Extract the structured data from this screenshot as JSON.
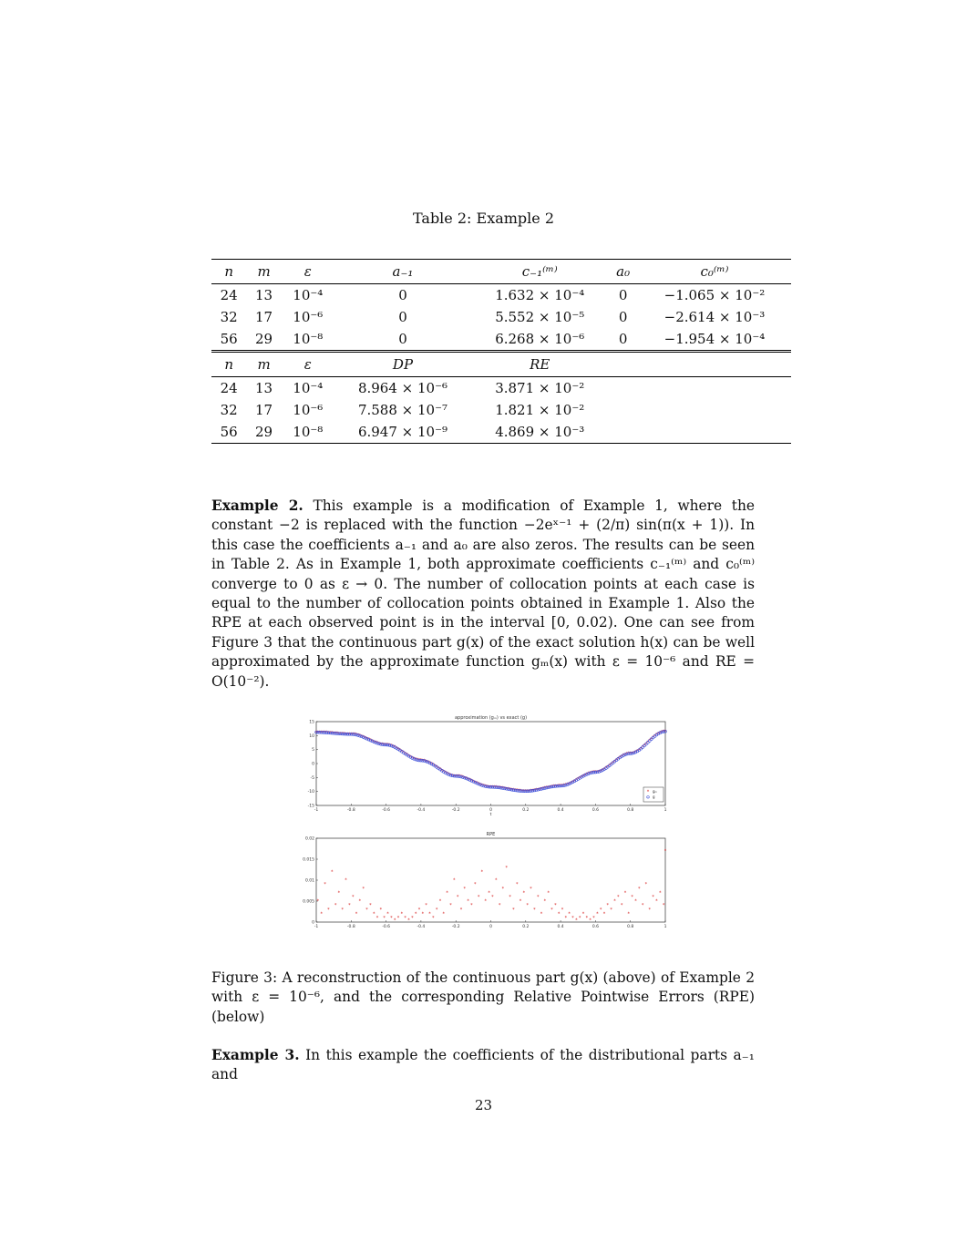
{
  "table": {
    "caption": "Table 2: Example 2",
    "header1": [
      "n",
      "m",
      "ε",
      "a₋₁",
      "c₋₁⁽ᵐ⁾",
      "a₀",
      "c₀⁽ᵐ⁾"
    ],
    "rows1": [
      [
        "24",
        "13",
        "10⁻⁴",
        "0",
        "1.632 × 10⁻⁴",
        "0",
        "−1.065 × 10⁻²"
      ],
      [
        "32",
        "17",
        "10⁻⁶",
        "0",
        "5.552 × 10⁻⁵",
        "0",
        "−2.614 × 10⁻³"
      ],
      [
        "56",
        "29",
        "10⁻⁸",
        "0",
        "6.268 × 10⁻⁶",
        "0",
        "−1.954 × 10⁻⁴"
      ]
    ],
    "header2": [
      "n",
      "m",
      "ε",
      "DP",
      "RE"
    ],
    "rows2": [
      [
        "24",
        "13",
        "10⁻⁴",
        "8.964 × 10⁻⁶",
        "3.871 × 10⁻²"
      ],
      [
        "32",
        "17",
        "10⁻⁶",
        "7.588 × 10⁻⁷",
        "1.821 × 10⁻²"
      ],
      [
        "56",
        "29",
        "10⁻⁸",
        "6.947 × 10⁻⁹",
        "4.869 × 10⁻³"
      ]
    ]
  },
  "example2": {
    "heading": "Example 2.",
    "text": "This example is a modification of Example 1, where the constant −2 is replaced with the function −2eˣ⁻¹ + (2/π) sin(π(x + 1)). In this case the coefficients a₋₁ and a₀ are also zeros. The results can be seen in Table 2. As in Example 1, both approximate coefficients c₋₁⁽ᵐ⁾ and c₀⁽ᵐ⁾ converge to 0 as ε → 0. The number of collocation points at each case is equal to the number of collocation points obtained in Example 1. Also the RPE at each observed point is in the interval [0, 0.02). One can see from Figure 3 that the continuous part g(x) of the exact solution h(x) can be well approximated by the approximate function gₘ(x) with ε = 10⁻⁶ and RE = O(10⁻²)."
  },
  "figure": {
    "caption": "Figure 3: A reconstruction of the continuous part g(x) (above) of Example 2 with ε = 10⁻⁶, and the corresponding Relative Pointwise Errors (RPE) (below)"
  },
  "example3": {
    "heading": "Example 3.",
    "text": "In this example the coefficients of the distributional parts a₋₁ and"
  },
  "page_number": "23",
  "chart_data": [
    {
      "type": "scatter",
      "title": "approximation (gₘ) vs exact (g)",
      "xlabel": "t",
      "ylabel": "",
      "xlim": [
        -1,
        1
      ],
      "ylim": [
        -15,
        15
      ],
      "xticks": [
        "-1",
        "-0.8",
        "-0.6",
        "-0.4",
        "-0.2",
        "0",
        "0.2",
        "0.4",
        "0.6",
        "0.8",
        "1"
      ],
      "yticks": [
        "15",
        "10",
        "5",
        "0",
        "-5",
        "-10",
        "-15"
      ],
      "legend": {
        "position": "bottom-right",
        "entries": [
          "gₘ",
          "g"
        ]
      },
      "series": [
        {
          "name": "gₘ",
          "marker": "*",
          "color": "#d62020",
          "x": [
            -1,
            -0.8,
            -0.6,
            -0.4,
            -0.2,
            0,
            0.2,
            0.4,
            0.6,
            0.8,
            1
          ],
          "y": [
            11.2,
            10.5,
            6.7,
            1.1,
            -4.5,
            -8.4,
            -9.9,
            -8.0,
            -3.1,
            3.6,
            11.5
          ]
        },
        {
          "name": "g",
          "marker": "o",
          "color": "#3a4bd8",
          "x": [
            -1,
            -0.8,
            -0.6,
            -0.4,
            -0.2,
            0,
            0.2,
            0.4,
            0.6,
            0.8,
            1
          ],
          "y": [
            11.2,
            10.5,
            6.7,
            1.1,
            -4.5,
            -8.4,
            -9.9,
            -8.0,
            -3.1,
            3.6,
            11.5
          ]
        }
      ]
    },
    {
      "type": "scatter",
      "title": "RPE",
      "xlabel": "t",
      "ylabel": "",
      "xlim": [
        -1,
        1
      ],
      "ylim": [
        0,
        0.02
      ],
      "xticks": [
        "-1",
        "-0.8",
        "-0.6",
        "-0.4",
        "-0.2",
        "0",
        "0.2",
        "0.4",
        "0.6",
        "0.8",
        "1"
      ],
      "yticks": [
        "0.02",
        "0.015",
        "0.01",
        "0.005",
        "0"
      ],
      "series": [
        {
          "name": "",
          "marker": "*",
          "color": "#d62020",
          "x": [
            -0.99,
            -0.97,
            -0.95,
            -0.93,
            -0.91,
            -0.89,
            -0.87,
            -0.85,
            -0.83,
            -0.81,
            -0.79,
            -0.77,
            -0.75,
            -0.73,
            -0.71,
            -0.69,
            -0.67,
            -0.65,
            -0.63,
            -0.61,
            -0.59,
            -0.57,
            -0.55,
            -0.53,
            -0.51,
            -0.49,
            -0.47,
            -0.45,
            -0.43,
            -0.41,
            -0.39,
            -0.37,
            -0.35,
            -0.33,
            -0.31,
            -0.29,
            -0.27,
            -0.25,
            -0.23,
            -0.21,
            -0.19,
            -0.17,
            -0.15,
            -0.13,
            -0.11,
            -0.09,
            -0.07,
            -0.05,
            -0.03,
            -0.01,
            0.01,
            0.03,
            0.05,
            0.07,
            0.09,
            0.11,
            0.13,
            0.15,
            0.17,
            0.19,
            0.21,
            0.23,
            0.25,
            0.27,
            0.29,
            0.31,
            0.33,
            0.35,
            0.37,
            0.39,
            0.41,
            0.43,
            0.45,
            0.47,
            0.49,
            0.51,
            0.53,
            0.55,
            0.57,
            0.59,
            0.61,
            0.63,
            0.65,
            0.67,
            0.69,
            0.71,
            0.73,
            0.75,
            0.77,
            0.79,
            0.81,
            0.83,
            0.85,
            0.87,
            0.89,
            0.91,
            0.93,
            0.95,
            0.97,
            0.99,
            1.0
          ],
          "y": [
            0.005,
            0.002,
            0.009,
            0.003,
            0.012,
            0.004,
            0.007,
            0.003,
            0.01,
            0.004,
            0.006,
            0.002,
            0.005,
            0.008,
            0.003,
            0.004,
            0.002,
            0.001,
            0.003,
            0.001,
            0.002,
            0.001,
            0.0005,
            0.001,
            0.002,
            0.001,
            0.0005,
            0.001,
            0.002,
            0.003,
            0.002,
            0.004,
            0.002,
            0.001,
            0.003,
            0.005,
            0.002,
            0.007,
            0.004,
            0.01,
            0.006,
            0.003,
            0.008,
            0.005,
            0.004,
            0.009,
            0.006,
            0.012,
            0.005,
            0.007,
            0.006,
            0.01,
            0.004,
            0.008,
            0.013,
            0.006,
            0.003,
            0.009,
            0.005,
            0.007,
            0.004,
            0.008,
            0.003,
            0.006,
            0.002,
            0.005,
            0.007,
            0.003,
            0.004,
            0.002,
            0.003,
            0.001,
            0.002,
            0.001,
            0.0005,
            0.001,
            0.002,
            0.001,
            0.0005,
            0.001,
            0.002,
            0.003,
            0.002,
            0.004,
            0.003,
            0.005,
            0.006,
            0.004,
            0.007,
            0.002,
            0.006,
            0.005,
            0.008,
            0.004,
            0.009,
            0.003,
            0.006,
            0.005,
            0.007,
            0.004,
            0.017
          ]
        }
      ]
    }
  ]
}
